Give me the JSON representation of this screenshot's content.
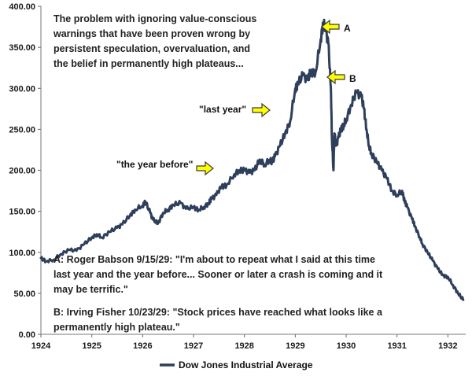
{
  "chart_data": {
    "type": "line",
    "title": "",
    "xlabel": "",
    "ylabel": "",
    "xlim": [
      1924.0,
      1932.35
    ],
    "ylim": [
      0,
      400
    ],
    "y_tick_labels": [
      "0.00",
      "50.00",
      "100.00",
      "150.00",
      "200.00",
      "250.00",
      "300.00",
      "350.00",
      "400.00"
    ],
    "x_tick_labels": [
      "1924",
      "1925",
      "1926",
      "1927",
      "1928",
      "1929",
      "1930",
      "1931",
      "1932"
    ],
    "series": [
      {
        "name": "Dow Jones Industrial Average",
        "color": "#2e3f5c",
        "x": [
          1924.0,
          1924.1,
          1924.25,
          1924.4,
          1924.55,
          1924.7,
          1924.85,
          1925.0,
          1925.1,
          1925.2,
          1925.35,
          1925.5,
          1925.6,
          1925.75,
          1925.85,
          1926.0,
          1926.05,
          1926.15,
          1926.2,
          1926.3,
          1926.4,
          1926.5,
          1926.6,
          1926.75,
          1926.85,
          1927.0,
          1927.1,
          1927.2,
          1927.3,
          1927.35,
          1927.45,
          1927.55,
          1927.65,
          1927.8,
          1927.9,
          1928.0,
          1928.1,
          1928.2,
          1928.3,
          1928.4,
          1928.5,
          1928.55,
          1928.6,
          1928.7,
          1928.8,
          1928.9,
          1929.0,
          1929.05,
          1929.15,
          1929.25,
          1929.3,
          1929.4,
          1929.5,
          1929.55,
          1929.6,
          1929.65,
          1929.7,
          1929.72,
          1929.75,
          1929.77,
          1929.8,
          1929.85,
          1929.9,
          1929.95,
          1930.0,
          1930.1,
          1930.2,
          1930.3,
          1930.35,
          1930.4,
          1930.45,
          1930.5,
          1930.6,
          1930.7,
          1930.8,
          1930.9,
          1931.0,
          1931.1,
          1931.15,
          1931.2,
          1931.3,
          1931.35,
          1931.45,
          1931.5,
          1931.6,
          1931.7,
          1931.8,
          1931.9,
          1932.0,
          1932.1,
          1932.2,
          1932.3
        ],
        "values": [
          93,
          89,
          91,
          98,
          103,
          102,
          110,
          118,
          122,
          118,
          125,
          130,
          134,
          145,
          152,
          157,
          162,
          148,
          140,
          135,
          148,
          152,
          158,
          160,
          153,
          155,
          152,
          155,
          160,
          165,
          170,
          180,
          182,
          195,
          200,
          200,
          197,
          200,
          213,
          207,
          213,
          210,
          217,
          230,
          245,
          260,
          300,
          305,
          316,
          310,
          320,
          320,
          360,
          380,
          370,
          355,
          300,
          240,
          200,
          245,
          230,
          240,
          250,
          255,
          262,
          280,
          295,
          290,
          275,
          250,
          230,
          220,
          210,
          200,
          190,
          175,
          170,
          175,
          162,
          155,
          140,
          132,
          118,
          110,
          100,
          90,
          80,
          72,
          70,
          60,
          50,
          42
        ]
      }
    ],
    "legend": "bottom-center"
  },
  "annotations": {
    "headline": [
      "The problem with ignoring value-conscious",
      "warnings that have been proven wrong by",
      "persistent speculation, overvaluation, and",
      "the belief in permanently high plateaus..."
    ],
    "label_last_year": "\"last year\"",
    "label_year_before": "\"the year before\"",
    "label_a": "A",
    "label_b": "B",
    "quote_a": [
      "A: Roger Babson 9/15/29:  \"I'm about to repeat what I said at this time",
      "last year and the year before... Sooner or later a crash is coming and it",
      "may be terrific.\""
    ],
    "quote_b": [
      "B: Irving Fisher 10/23/29:  \"Stock prices have reached what looks like a",
      "permanently high plateau.\""
    ]
  },
  "colors": {
    "line": "#2e3f5c",
    "arrow_fill": "#ffff00",
    "arrow_stroke": "#3a3a3a",
    "text": "#222222"
  }
}
